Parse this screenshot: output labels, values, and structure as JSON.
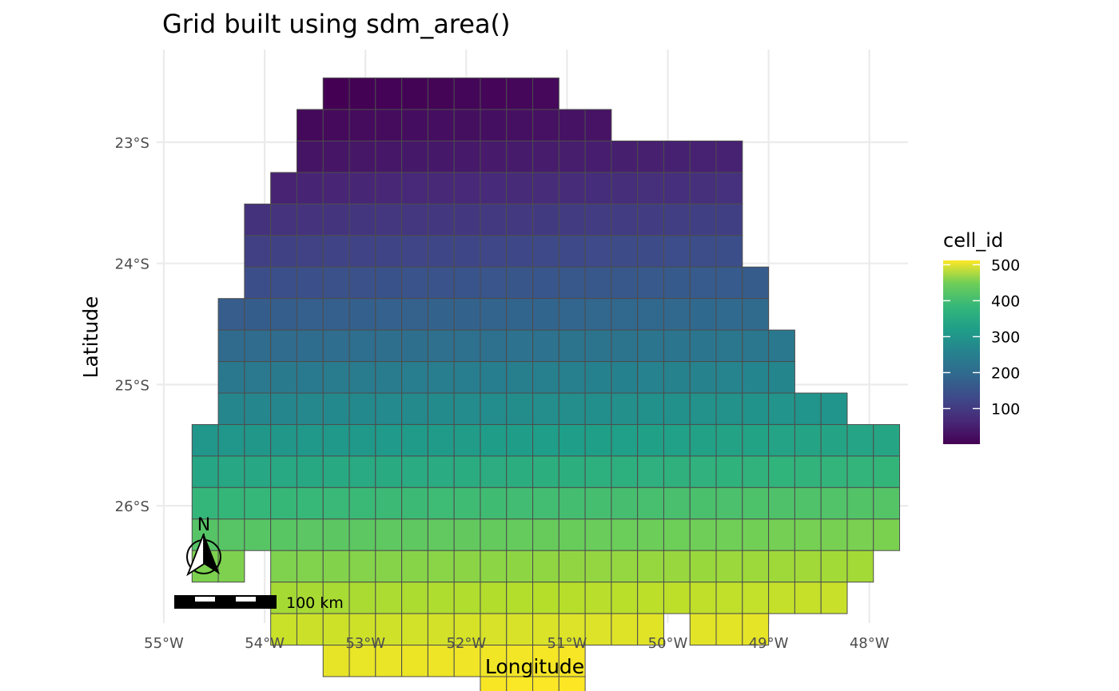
{
  "title": "Grid built using sdm_area()",
  "x_axis": {
    "label": "Longitude",
    "ticks": [
      {
        "value": -55,
        "label": "55°W"
      },
      {
        "value": -54,
        "label": "54°W"
      },
      {
        "value": -53,
        "label": "53°W"
      },
      {
        "value": -52,
        "label": "52°W"
      },
      {
        "value": -51,
        "label": "51°W"
      },
      {
        "value": -50,
        "label": "50°W"
      },
      {
        "value": -49,
        "label": "49°W"
      },
      {
        "value": -48,
        "label": "48°W"
      }
    ]
  },
  "y_axis": {
    "label": "Latitude",
    "ticks": [
      {
        "value": -23,
        "label": "23°S"
      },
      {
        "value": -24,
        "label": "24°S"
      },
      {
        "value": -25,
        "label": "25°S"
      },
      {
        "value": -26,
        "label": "26°S"
      }
    ]
  },
  "legend": {
    "title": "cell_id",
    "ticks": [
      {
        "value": 100,
        "label": "100"
      },
      {
        "value": 200,
        "label": "200"
      },
      {
        "value": 300,
        "label": "300"
      },
      {
        "value": 400,
        "label": "400"
      },
      {
        "value": 500,
        "label": "500"
      }
    ],
    "range": [
      1,
      512
    ],
    "palette": "viridis"
  },
  "north_arrow": {
    "label": "N"
  },
  "scale_bar": {
    "label": "100 km"
  },
  "grid": {
    "cell_size_deg": 0.26,
    "lon_origin": -54.72,
    "lat_origin": -22.47,
    "rows": [
      {
        "row": 0,
        "start_col": 5,
        "end_col": 13
      },
      {
        "row": 1,
        "start_col": 4,
        "end_col": 15
      },
      {
        "row": 2,
        "start_col": 4,
        "end_col": 20
      },
      {
        "row": 3,
        "start_col": 3,
        "end_col": 20
      },
      {
        "row": 4,
        "start_col": 2,
        "end_col": 20
      },
      {
        "row": 5,
        "start_col": 2,
        "end_col": 20
      },
      {
        "row": 6,
        "start_col": 2,
        "end_col": 21
      },
      {
        "row": 7,
        "start_col": 1,
        "end_col": 21
      },
      {
        "row": 8,
        "start_col": 1,
        "end_col": 22
      },
      {
        "row": 9,
        "start_col": 1,
        "end_col": 22
      },
      {
        "row": 10,
        "start_col": 1,
        "end_col": 24
      },
      {
        "row": 11,
        "start_col": 0,
        "end_col": 26
      },
      {
        "row": 12,
        "start_col": 0,
        "end_col": 26
      },
      {
        "row": 13,
        "start_col": 0,
        "end_col": 26
      },
      {
        "row": 14,
        "start_col": 0,
        "end_col": 26
      },
      {
        "row": 15,
        "start_col": 0,
        "end_col": 25,
        "gaps": [
          2
        ]
      },
      {
        "row": 16,
        "start_col": 3,
        "end_col": 24
      },
      {
        "row": 17,
        "start_col": 3,
        "end_col": 21,
        "gaps": [
          18
        ]
      },
      {
        "row": 18,
        "start_col": 5,
        "end_col": 14
      },
      {
        "row": 19,
        "start_col": 11,
        "end_col": 14
      }
    ]
  }
}
